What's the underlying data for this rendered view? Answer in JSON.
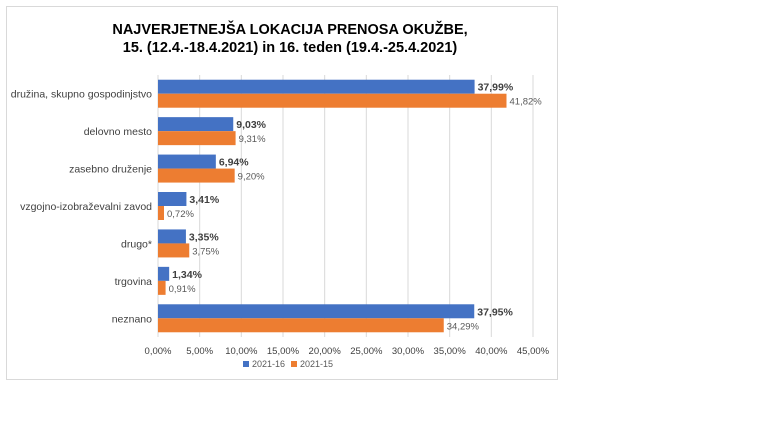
{
  "chart_data": {
    "type": "bar",
    "orientation": "horizontal",
    "title_line1": "NAJVERJETNEJŠA LOKACIJA PRENOSA OKUŽBE,",
    "title_line2": "15. (12.4.-18.4.2021) in 16. teden (19.4.-25.4.2021)",
    "categories": [
      "družina, skupno gospodinjstvo",
      "delovno mesto",
      "zasebno druženje",
      "vzgojno-izobraževalni zavod",
      "drugo*",
      "trgovina",
      "neznano"
    ],
    "series": [
      {
        "name": "2021-16",
        "color": "#4472c4",
        "values": [
          37.99,
          9.03,
          6.94,
          3.41,
          3.35,
          1.34,
          37.95
        ],
        "labels": [
          "37,99%",
          "9,03%",
          "6,94%",
          "3,41%",
          "3,35%",
          "1,34%",
          "37,95%"
        ]
      },
      {
        "name": "2021-15",
        "color": "#ed7d31",
        "values": [
          41.82,
          9.31,
          9.2,
          0.72,
          3.75,
          0.91,
          34.29
        ],
        "labels": [
          "41,82%",
          "9,31%",
          "9,20%",
          "0,72%",
          "3,75%",
          "0,91%",
          "34,29%"
        ]
      }
    ],
    "xlim": [
      0,
      45
    ],
    "xticks": [
      0,
      5,
      10,
      15,
      20,
      25,
      30,
      35,
      40,
      45
    ],
    "xtick_labels": [
      "0,00%",
      "5,00%",
      "10,00%",
      "15,00%",
      "20,00%",
      "25,00%",
      "30,00%",
      "35,00%",
      "40,00%",
      "45,00%"
    ],
    "grid": true,
    "legend_position": "bottom"
  }
}
